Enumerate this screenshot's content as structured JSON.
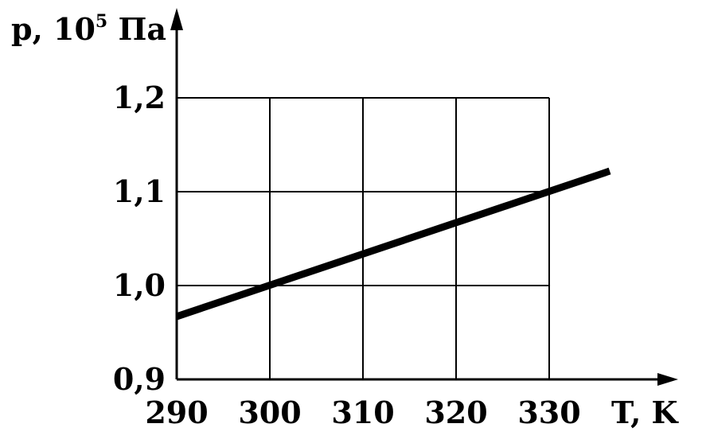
{
  "chart_data": {
    "type": "line",
    "xlabel": "T, K",
    "ylabel_base": "p, 10",
    "ylabel_exp": "5",
    "ylabel_unit": " Па",
    "x_ticks": [
      290,
      300,
      310,
      320,
      330
    ],
    "x_tick_labels": [
      "290",
      "300",
      "310",
      "320",
      "330"
    ],
    "y_ticks": [
      0.9,
      1.0,
      1.1,
      1.2
    ],
    "y_tick_labels": [
      "0,9",
      "1,0",
      "1,1",
      "1,2"
    ],
    "xlim": [
      290,
      330
    ],
    "ylim": [
      0.9,
      1.2
    ],
    "grid": true,
    "series": [
      {
        "x": [
          290,
          336.5
        ],
        "y": [
          0.967,
          1.122
        ]
      }
    ]
  }
}
